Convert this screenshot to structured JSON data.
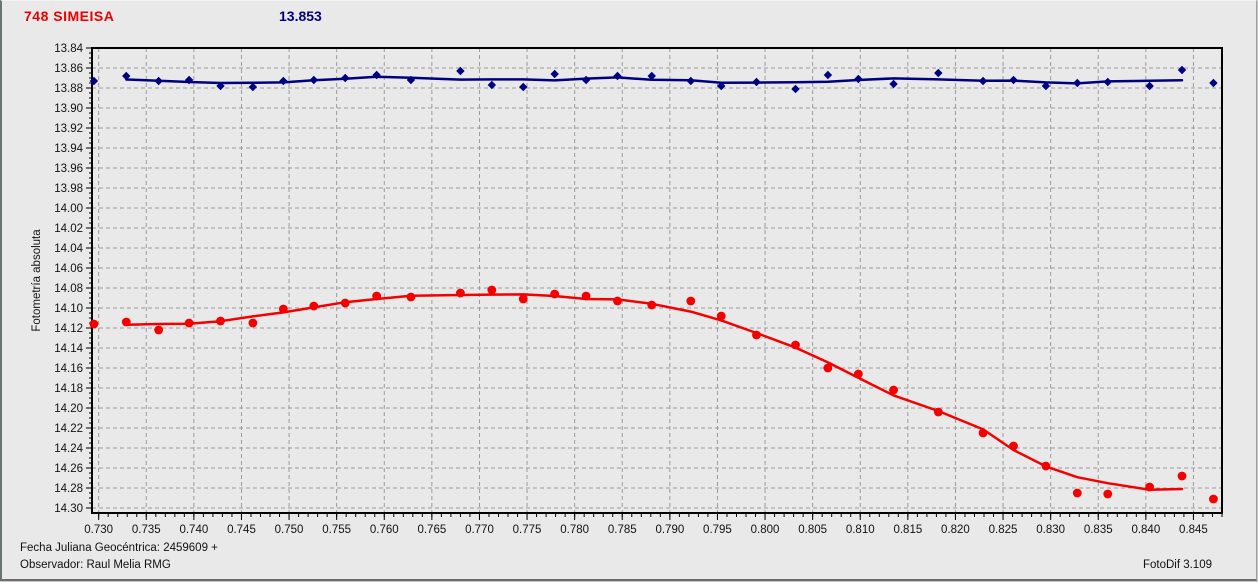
{
  "header": {
    "title": "748 SIMEISA",
    "title_color": "#ee0000",
    "value": "13.853",
    "value_color": "#000080"
  },
  "footer": {
    "line1": "Fecha Juliana Geocéntrica: 2459609 +",
    "line2": "Observador: Raul Melia RMG",
    "app": "FotoDif 3.109"
  },
  "colors": {
    "background": "#e9e9e9",
    "grid": "#9b9b9b",
    "axis": "#000000",
    "target_series": "#f40000",
    "comparison_series": "#000082"
  },
  "chart_data": {
    "type": "scatter",
    "title": "748 SIMEISA",
    "subtitle_value": "13.853",
    "xlabel": "",
    "ylabel": "Fotometría absoluta",
    "grid": true,
    "y_axis_inverted": true,
    "xlim": [
      0.7293,
      0.848
    ],
    "ylim": [
      13.84,
      14.305
    ],
    "x_ticks": {
      "start": 0.73,
      "step": 0.005,
      "end": 0.845,
      "minor_step": 0.001,
      "decimals": 3
    },
    "y_ticks": {
      "start": 13.84,
      "step": 0.02,
      "end": 14.3,
      "minor_step": 0.005,
      "decimals": 2
    },
    "x": [
      0.7295,
      0.7329,
      0.7363,
      0.7395,
      0.7428,
      0.7462,
      0.7494,
      0.7526,
      0.7559,
      0.7592,
      0.7628,
      0.768,
      0.7713,
      0.7746,
      0.7779,
      0.7812,
      0.7845,
      0.7881,
      0.7922,
      0.7954,
      0.7991,
      0.8032,
      0.8066,
      0.8098,
      0.8135,
      0.8182,
      0.8229,
      0.8261,
      0.8295,
      0.8328,
      0.836,
      0.8404,
      0.8438,
      0.8471
    ],
    "series": [
      {
        "name": "target-asteroid-magnitude",
        "color": "#f40000",
        "marker": "circle",
        "fit_line": true,
        "values": [
          14.116,
          14.114,
          14.122,
          14.115,
          14.113,
          14.115,
          14.101,
          14.098,
          14.095,
          14.088,
          14.089,
          14.085,
          14.082,
          14.091,
          14.086,
          14.088,
          14.093,
          14.097,
          14.093,
          14.108,
          14.127,
          14.137,
          14.16,
          14.166,
          14.182,
          14.204,
          14.225,
          14.238,
          14.258,
          14.285,
          14.286,
          14.279,
          14.268,
          14.291
        ]
      },
      {
        "name": "comparison-star-magnitude",
        "color": "#000082",
        "marker": "diamond",
        "fit_line": true,
        "values": [
          13.873,
          13.868,
          13.873,
          13.872,
          13.878,
          13.879,
          13.873,
          13.872,
          13.87,
          13.867,
          13.872,
          13.863,
          13.877,
          13.879,
          13.866,
          13.872,
          13.868,
          13.868,
          13.873,
          13.878,
          13.874,
          13.881,
          13.867,
          13.871,
          13.876,
          13.865,
          13.873,
          13.872,
          13.878,
          13.875,
          13.874,
          13.878,
          13.862,
          13.875
        ]
      }
    ]
  }
}
